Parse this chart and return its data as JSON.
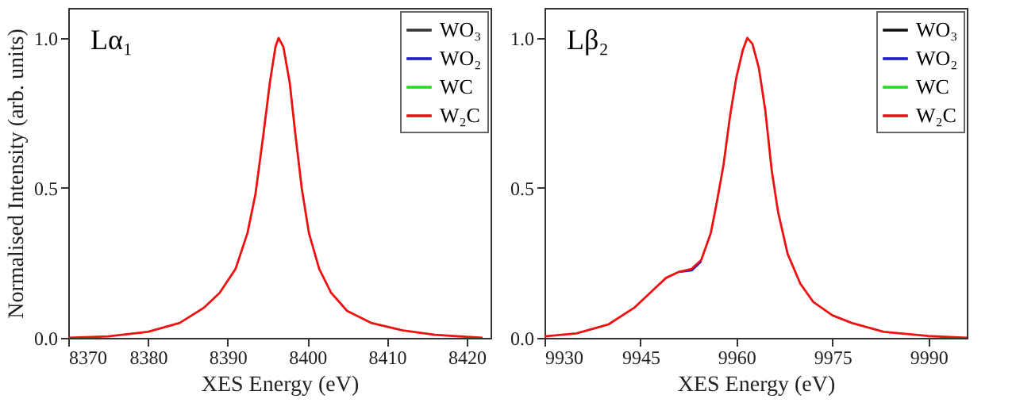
{
  "chart_data": [
    {
      "type": "line",
      "annotations": [
        "Lα₁"
      ],
      "xlabel": "XES Energy (eV)",
      "ylabel": "Normalised Intensity (arb. units)",
      "xlim": [
        8370,
        8423
      ],
      "xticks": [
        8370,
        8380,
        8390,
        8400,
        8410,
        8420
      ],
      "ylim": [
        0,
        1.1
      ],
      "yticks": [
        {
          "value": 0,
          "label": "0.0"
        },
        {
          "value": 0.5,
          "label": "0.5"
        },
        {
          "value": 1,
          "label": "1.0"
        }
      ],
      "legend": "top right",
      "line_style": "solid",
      "marker": "none",
      "x": [
        8370,
        8375,
        8380,
        8384,
        8387,
        8389,
        8391,
        8392.5,
        8393.5,
        8394.5,
        8395.3,
        8396,
        8396.4,
        8397,
        8397.8,
        8398.5,
        8399.3,
        8400.2,
        8401.5,
        8403,
        8405,
        8408,
        8412,
        8416,
        8422
      ],
      "series": [
        {
          "name": "WO₃",
          "color": "#333333",
          "values": [
            null,
            null,
            null,
            null,
            null,
            null,
            null,
            null,
            null,
            null,
            null,
            null,
            null,
            null,
            null,
            null,
            null,
            null,
            null,
            null,
            null,
            null,
            null,
            null,
            null
          ]
        },
        {
          "name": "WO₂",
          "color": "#1c1cc8",
          "values": [
            null,
            null,
            null,
            null,
            null,
            null,
            null,
            null,
            null,
            null,
            null,
            null,
            null,
            null,
            null,
            null,
            null,
            null,
            null,
            null,
            null,
            null,
            null,
            null,
            null
          ]
        },
        {
          "name": "WC",
          "color": "#22dd22",
          "values": [
            null,
            null,
            null,
            null,
            null,
            null,
            null,
            null,
            null,
            null,
            null,
            null,
            null,
            null,
            null,
            null,
            null,
            null,
            null,
            null,
            null,
            null,
            null,
            null,
            null
          ]
        },
        {
          "name": "W₂C",
          "color": "#ee1111",
          "values": [
            0,
            0.005,
            0.02,
            0.05,
            0.1,
            0.15,
            0.23,
            0.35,
            0.48,
            0.68,
            0.85,
            0.97,
            1,
            0.97,
            0.85,
            0.68,
            0.5,
            0.35,
            0.23,
            0.15,
            0.09,
            0.05,
            0.025,
            0.01,
            0
          ]
        }
      ]
    },
    {
      "type": "line",
      "annotations": [
        "Lβ₂"
      ],
      "xlabel": "XES Energy (eV)",
      "xlim": [
        9930,
        9996
      ],
      "xticks": [
        9930,
        9945,
        9960,
        9975,
        9990
      ],
      "ylim": [
        0,
        1.1
      ],
      "yticks": [
        {
          "value": 0,
          "label": "0.0"
        },
        {
          "value": 0.5,
          "label": "0.5"
        },
        {
          "value": 1,
          "label": "1.0"
        }
      ],
      "legend": "top right",
      "line_style": "solid",
      "marker": "none",
      "x": [
        9930,
        9935,
        9940,
        9944,
        9947,
        9949,
        9951,
        9953,
        9954.5,
        9956,
        9957,
        9958,
        9959,
        9960,
        9961,
        9961.7,
        9962.5,
        9963.5,
        9964.5,
        9965.5,
        9966.5,
        9968,
        9970,
        9972,
        9975,
        9978,
        9983,
        9990,
        9996
      ],
      "series": [
        {
          "name": "WO₃",
          "color": "#111111",
          "values": [
            null,
            null,
            null,
            null,
            null,
            null,
            null,
            null,
            null,
            null,
            null,
            null,
            null,
            null,
            null,
            null,
            null,
            null,
            null,
            null,
            null,
            null,
            null,
            null,
            null,
            null,
            null,
            null,
            null
          ]
        },
        {
          "name": "WO₂",
          "color": "#1c1cc8",
          "values": [
            null,
            null,
            null,
            null,
            null,
            null,
            0.22,
            0.225,
            0.255,
            null,
            null,
            null,
            null,
            null,
            null,
            null,
            null,
            null,
            null,
            null,
            null,
            null,
            null,
            null,
            null,
            null,
            null,
            null,
            null
          ]
        },
        {
          "name": "WC",
          "color": "#22dd22",
          "values": [
            null,
            null,
            null,
            null,
            null,
            null,
            null,
            null,
            null,
            null,
            null,
            null,
            null,
            null,
            null,
            null,
            null,
            null,
            null,
            null,
            null,
            null,
            null,
            null,
            null,
            null,
            null,
            null,
            null
          ]
        },
        {
          "name": "W₂C",
          "color": "#ee1111",
          "values": [
            0.005,
            0.015,
            0.045,
            0.1,
            0.16,
            0.2,
            0.22,
            0.23,
            0.26,
            0.35,
            0.46,
            0.58,
            0.74,
            0.87,
            0.96,
            1,
            0.98,
            0.9,
            0.76,
            0.56,
            0.42,
            0.28,
            0.18,
            0.12,
            0.075,
            0.05,
            0.02,
            0.006,
            0
          ]
        }
      ]
    }
  ]
}
